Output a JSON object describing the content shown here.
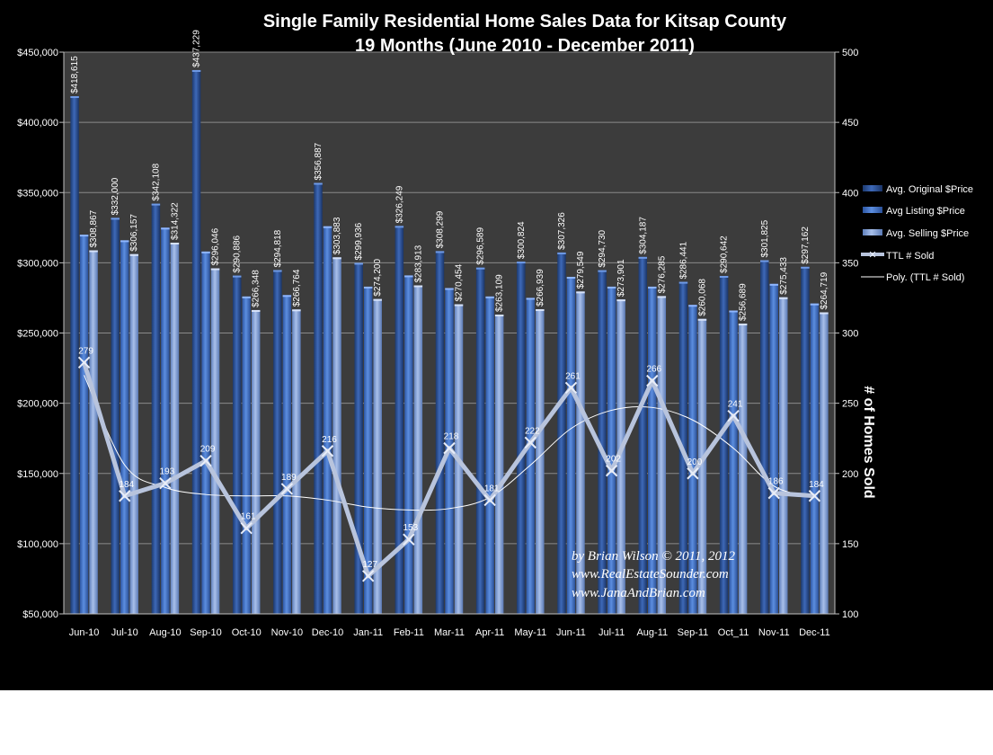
{
  "chart_data": {
    "type": "bar",
    "title": "Single Family Residential Home Sales Data for Kitsap County",
    "subtitle": "19 Months (June  2010 - December 2011)",
    "xlabel": "",
    "ylabel": "",
    "y2label": "# of Homes Sold",
    "ylim": [
      50000,
      450000
    ],
    "y2lim": [
      100,
      500
    ],
    "grid": true,
    "legend_position": "right",
    "categories": [
      "Jun-10",
      "Jul-10",
      "Aug-10",
      "Sep-10",
      "Oct-10",
      "Nov-10",
      "Dec-10",
      "Jan-11",
      "Feb-11",
      "Mar-11",
      "Apr-11",
      "May-11",
      "Jun-11",
      "Jul-11",
      "Aug-11",
      "Sep-11",
      "Oct_11",
      "Nov-11",
      "Dec-11"
    ],
    "y_ticks": [
      "$50,000",
      "$100,000",
      "$150,000",
      "$200,000",
      "$250,000",
      "$300,000",
      "$350,000",
      "$400,000",
      "$450,000"
    ],
    "y2_ticks": [
      "100",
      "150",
      "200",
      "250",
      "300",
      "350",
      "400",
      "450",
      "500"
    ],
    "series": [
      {
        "name": "Avg. Original $Price",
        "kind": "bar",
        "color": "#2a4f92",
        "values": [
          418615,
          332000,
          342108,
          437229,
          290886,
          294818,
          356887,
          299936,
          326249,
          308299,
          296589,
          300824,
          307326,
          294730,
          304187,
          286441,
          290642,
          301825,
          297162
        ],
        "labels": [
          "$418,615",
          "$332,000",
          "$342,108",
          "$437,229",
          "$290,886",
          "$294,818",
          "$356,887",
          "$299,936",
          "$326,249",
          "$308,299",
          "$296,589",
          "$300,824",
          "$307,326",
          "$294,730",
          "$304,187",
          "$286,441",
          "$290,642",
          "$301,825",
          "$297,162"
        ]
      },
      {
        "name": "Avg Listing $Price",
        "kind": "bar",
        "color": "#3c6bc0",
        "values": [
          320000,
          316000,
          325000,
          308000,
          276000,
          277000,
          326000,
          283000,
          291000,
          282000,
          276000,
          275000,
          290000,
          283000,
          283000,
          270000,
          266000,
          285000,
          271000
        ],
        "labels": [
          "",
          "",
          "",
          "",
          "",
          "",
          "",
          "",
          "",
          "",
          "",
          "",
          "",
          "",
          "",
          "",
          "",
          "",
          ""
        ]
      },
      {
        "name": "Avg. Selling $Price",
        "kind": "bar",
        "color": "#7f9fd6",
        "values": [
          308867,
          306157,
          314322,
          296046,
          266348,
          266764,
          303883,
          274200,
          283913,
          270454,
          263109,
          266939,
          279549,
          273901,
          276285,
          260068,
          256689,
          275433,
          264719
        ],
        "labels": [
          "$308,867",
          "$306,157",
          "$314,322",
          "$296,046",
          "$266,348",
          "$266,764",
          "$303,883",
          "$274,200",
          "$283,913",
          "$270,454",
          "$263,109",
          "$266,939",
          "$279,549",
          "$273,901",
          "$276,285",
          "$260,068",
          "$256,689",
          "$275,433",
          "$264,719"
        ]
      },
      {
        "name": "TTL # Sold",
        "kind": "line",
        "axis": "right",
        "color": "#b8c4dd",
        "values": [
          279,
          184,
          193,
          209,
          161,
          189,
          216,
          127,
          153,
          218,
          181,
          222,
          261,
          202,
          266,
          200,
          241,
          186,
          184
        ],
        "labels": [
          "279",
          "184",
          "193",
          "209",
          "161",
          "189",
          "216",
          "127",
          "153",
          "218",
          "181",
          "222",
          "261",
          "202",
          "266",
          "200",
          "241",
          "186",
          "184"
        ]
      },
      {
        "name": "Poly. (TTL # Sold)",
        "kind": "trendline",
        "axis": "right",
        "color": "#ffffff",
        "values": [
          270,
          206,
          190,
          185,
          184,
          184,
          181,
          176,
          174,
          175,
          183,
          206,
          232,
          245,
          247,
          238,
          218,
          191,
          183
        ]
      }
    ],
    "credit_lines": [
      "by Brian Wilson  © 2011, 2012",
      "www.RealEstateSounder.com",
      "www.JanaAndBrian.com"
    ]
  }
}
